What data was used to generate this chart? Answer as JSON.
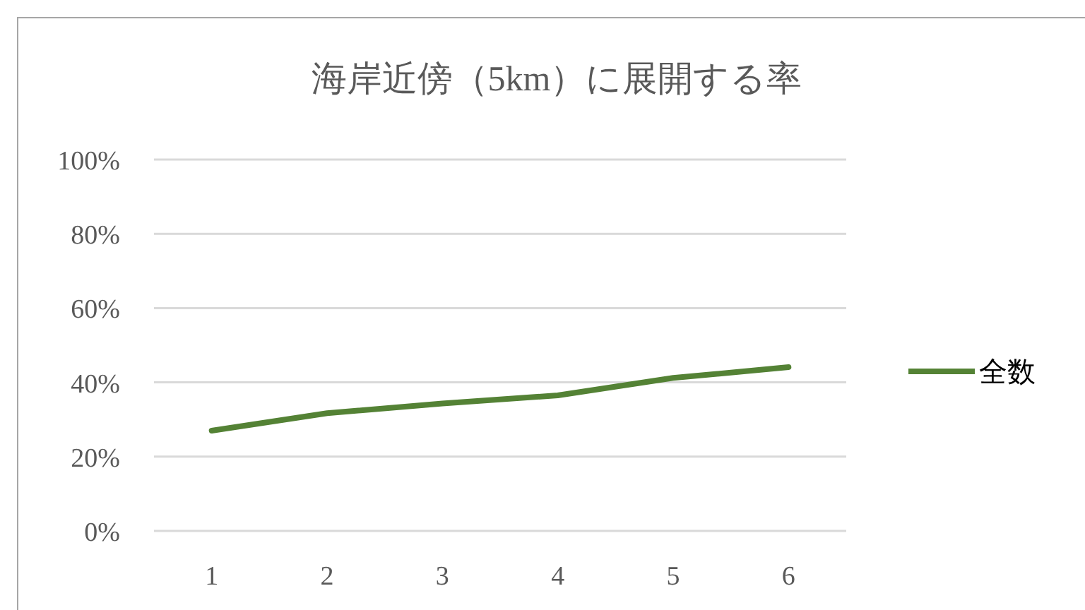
{
  "chart_data": {
    "type": "line",
    "title": "海岸近傍（5km）に展開する率",
    "categories": [
      "1",
      "2",
      "3",
      "4",
      "5",
      "6"
    ],
    "series": [
      {
        "name": "全数",
        "color": "#548235",
        "values": [
          27.0,
          31.7,
          34.3,
          36.5,
          41.2,
          44.1
        ]
      }
    ],
    "ylim": [
      0,
      100
    ],
    "yticks": [
      {
        "value": 0,
        "label": "0%"
      },
      {
        "value": 20,
        "label": "20%"
      },
      {
        "value": 40,
        "label": "40%"
      },
      {
        "value": 60,
        "label": "60%"
      },
      {
        "value": 80,
        "label": "80%"
      },
      {
        "value": 100,
        "label": "100%"
      }
    ],
    "grid": "y",
    "legend": "right",
    "marker": "none",
    "line_style": "solid"
  }
}
